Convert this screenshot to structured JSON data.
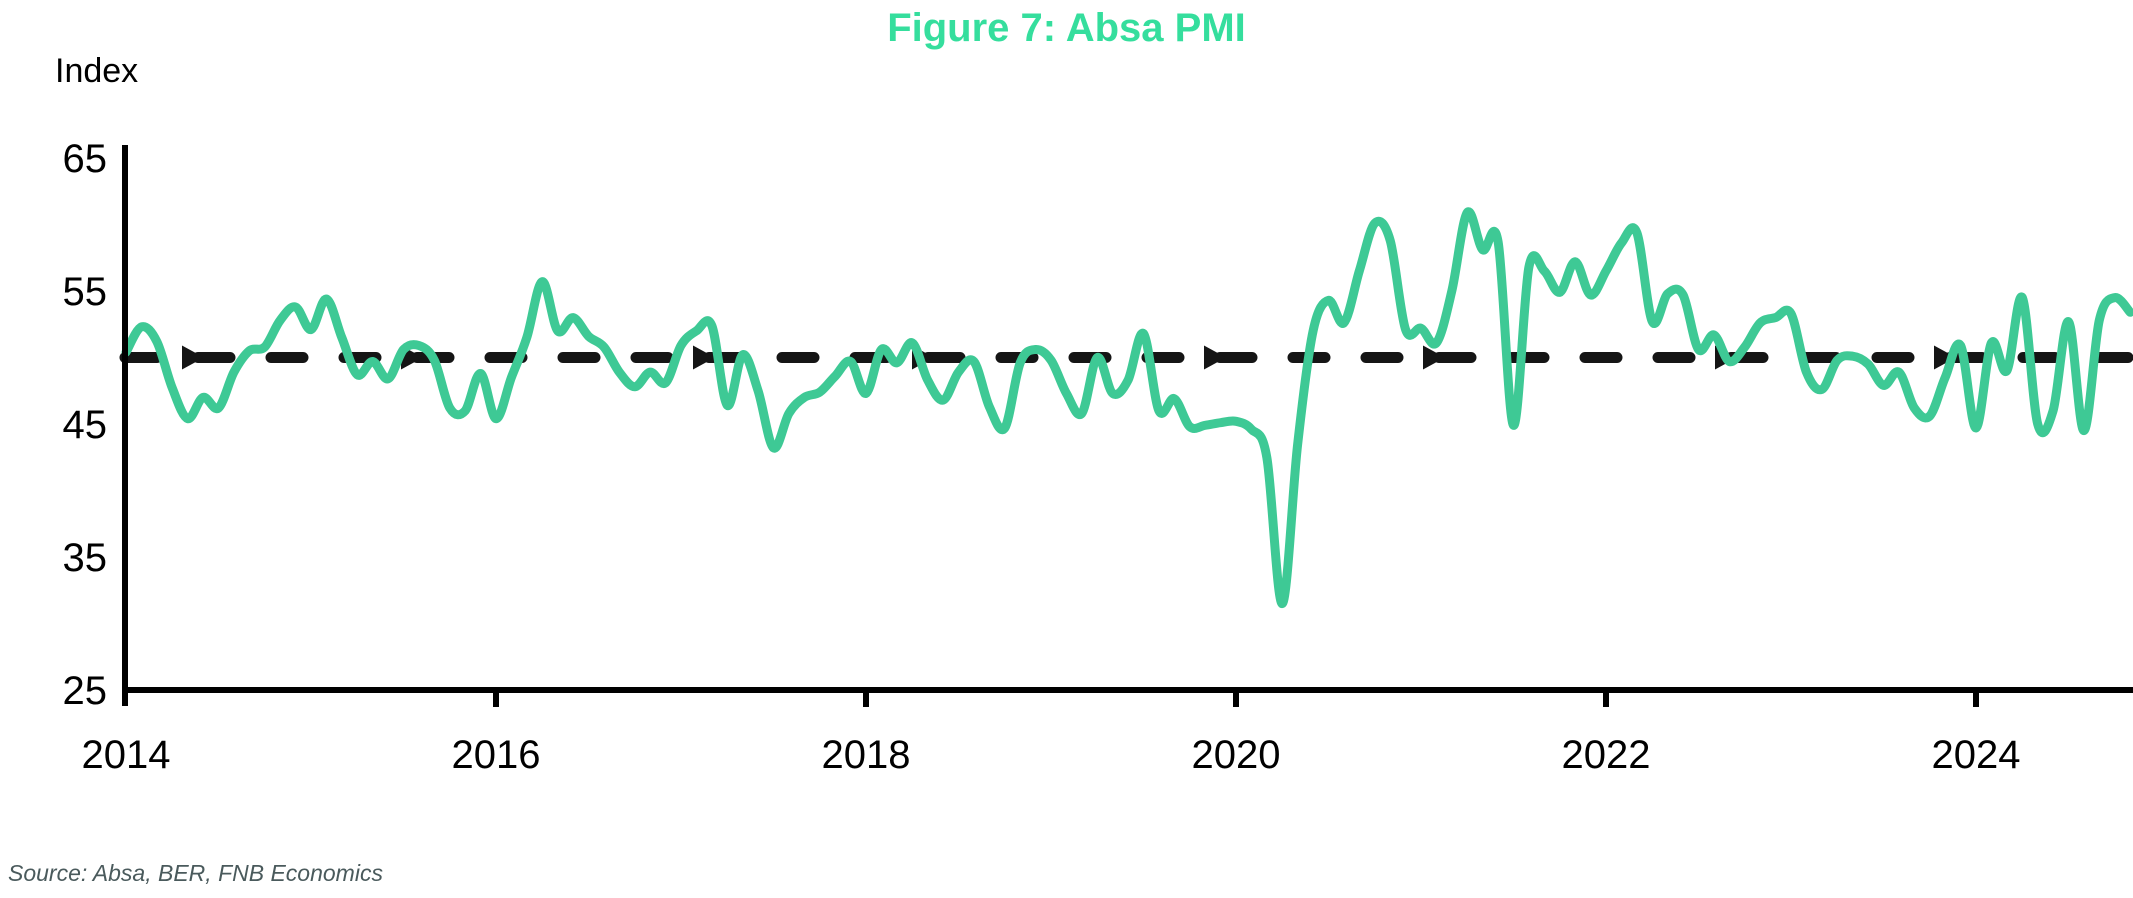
{
  "figure": {
    "title": "Figure 7: Absa PMI",
    "source": "Source: Absa, BER, FNB Economics"
  },
  "colors": {
    "title_green": "#35de9d",
    "line_green": "#3ec995",
    "reference_black": "#151515",
    "axis_black": "#000000",
    "label_black": "#000000",
    "source_gray": "#4a5a5c"
  },
  "chart_data": {
    "type": "line",
    "title": "Figure 7: Absa PMI",
    "ylabel": "Index",
    "xlabel": "",
    "ylim": [
      25,
      65
    ],
    "yticks": [
      65,
      55,
      45,
      35,
      25
    ],
    "xticks": [
      2014,
      2016,
      2018,
      2020,
      2022,
      2024
    ],
    "grid": false,
    "legend": false,
    "reference_line": {
      "value": 50,
      "style": "dashed",
      "marker": "right-arrow"
    },
    "series": [
      {
        "name": "Absa PMI",
        "frequency": "monthly",
        "start": "2014-01",
        "end": "2024-11",
        "values": [
          50.4,
          52.3,
          51.2,
          47.7,
          45.4,
          47.0,
          46.2,
          48.9,
          50.5,
          50.8,
          52.8,
          53.8,
          52.1,
          54.4,
          51.5,
          48.7,
          49.7,
          48.4,
          50.6,
          50.9,
          49.8,
          46.2,
          46.0,
          48.8,
          45.4,
          48.5,
          51.5,
          55.7,
          52.0,
          53.0,
          51.6,
          50.8,
          48.9,
          47.8,
          48.9,
          48.1,
          50.9,
          52.0,
          52.4,
          46.4,
          50.2,
          47.5,
          43.2,
          45.8,
          47.0,
          47.4,
          48.6,
          49.7,
          47.3,
          50.6,
          49.6,
          51.1,
          48.3,
          46.8,
          48.9,
          49.7,
          46.3,
          44.7,
          49.6,
          50.6,
          49.8,
          47.3,
          45.8,
          50.0,
          47.3,
          48.3,
          51.8,
          46.0,
          46.9,
          44.8,
          44.9,
          45.1,
          45.2,
          44.6,
          42.5,
          31.5,
          43.5,
          52.0,
          54.3,
          52.6,
          56.5,
          60.1,
          58.8,
          52.1,
          52.2,
          51.1,
          55.0,
          60.9,
          58.1,
          58.7,
          44.9,
          56.8,
          56.5,
          54.9,
          57.2,
          54.7,
          56.5,
          58.6,
          59.4,
          52.7,
          54.8,
          54.7,
          50.6,
          51.7,
          49.7,
          50.8,
          52.6,
          53.0,
          53.3,
          48.9,
          47.6,
          49.8,
          50.1,
          49.5,
          47.9,
          48.9,
          46.2,
          45.6,
          48.5,
          50.9,
          44.7,
          51.1,
          49.0,
          54.5,
          45.0,
          46.0,
          52.7,
          44.5,
          52.8,
          54.5,
          53.4
        ]
      }
    ]
  }
}
